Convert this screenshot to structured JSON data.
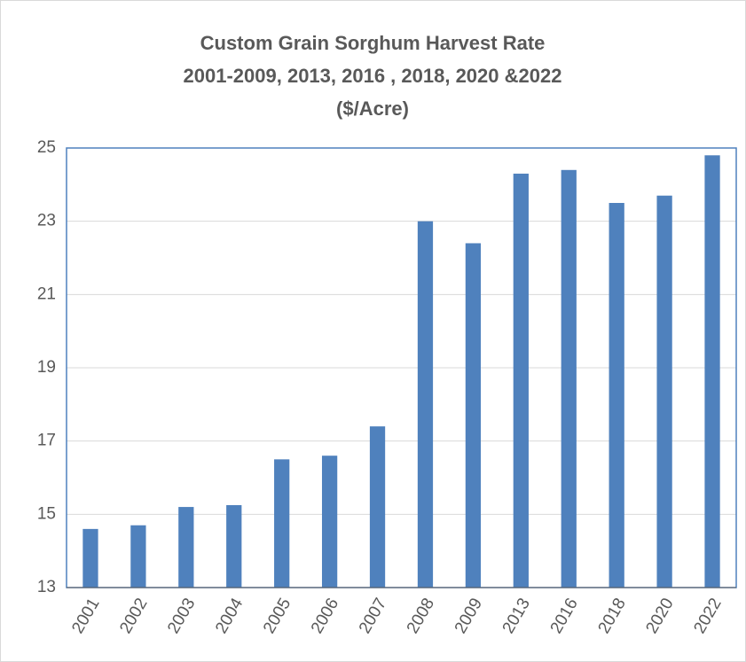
{
  "chart_data": {
    "type": "bar",
    "title": [
      "Custom Grain Sorghum Harvest Rate",
      "2001-2009, 2013, 2016 , 2018, 2020 &2022",
      "($/Acre)"
    ],
    "categories": [
      "2001",
      "2002",
      "2003",
      "2004",
      "2005",
      "2006",
      "2007",
      "2008",
      "2009",
      "2013",
      "2016",
      "2018",
      "2020",
      "2022"
    ],
    "values": [
      14.6,
      14.7,
      15.2,
      15.25,
      16.5,
      16.6,
      17.4,
      23.0,
      22.4,
      24.3,
      24.4,
      23.5,
      23.7,
      24.8
    ],
    "color": "#4f81bd",
    "ylim": [
      13,
      25
    ],
    "yticks": [
      13,
      15,
      17,
      19,
      21,
      23,
      25
    ],
    "grid": true
  }
}
